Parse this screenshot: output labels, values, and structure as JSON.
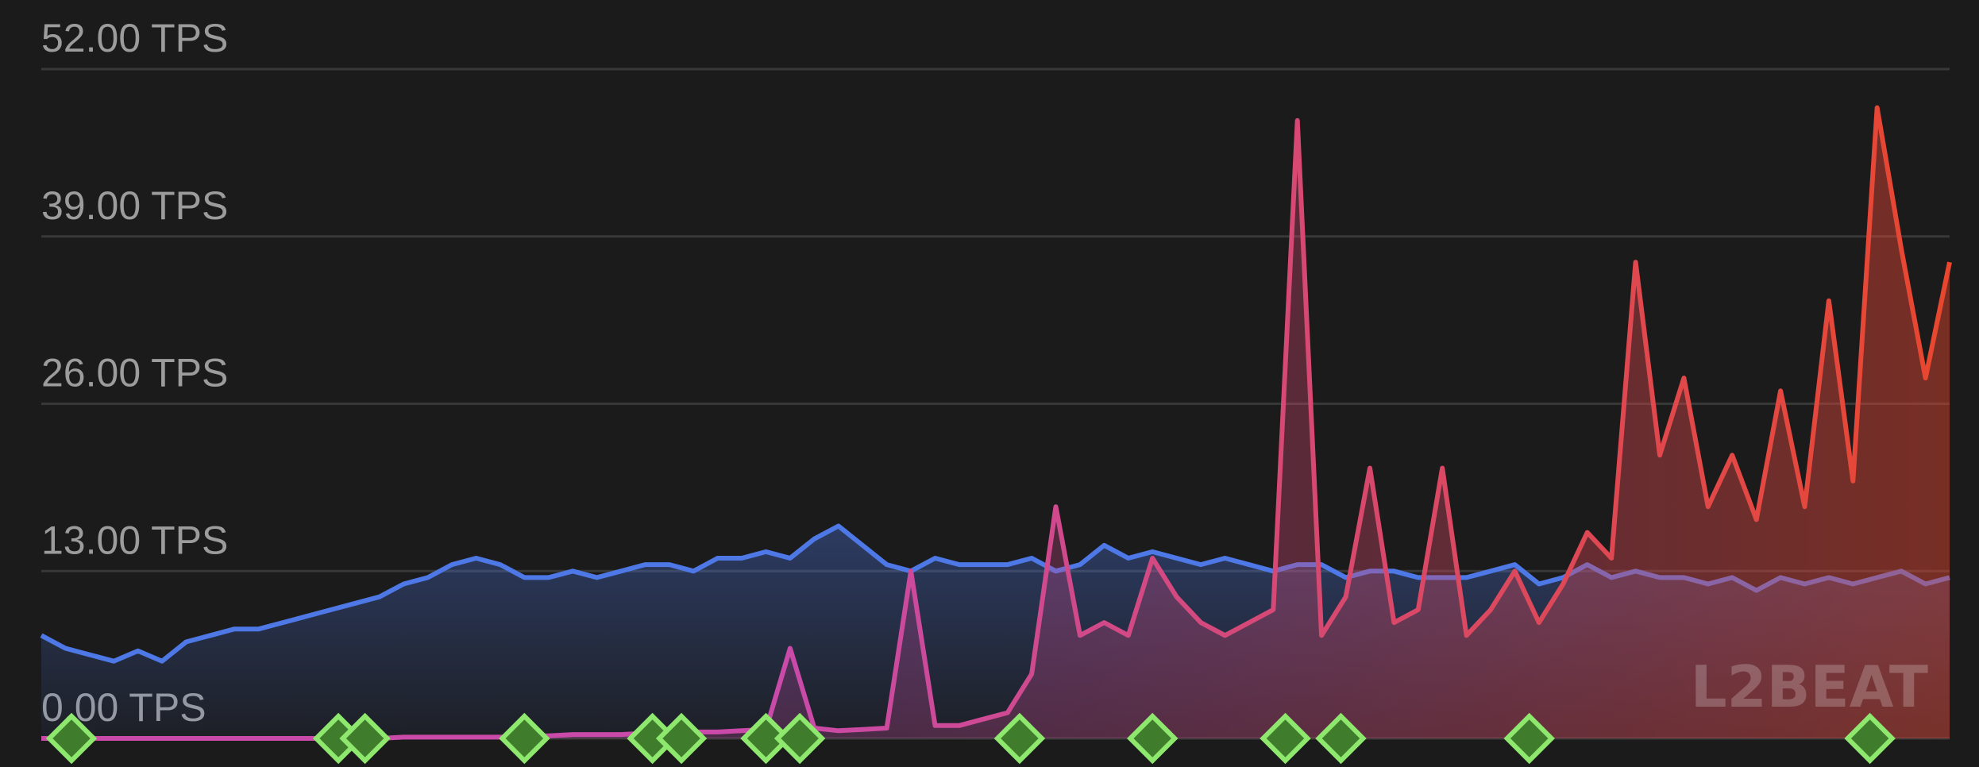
{
  "chart_data": {
    "type": "line",
    "ylim": [
      0,
      52
    ],
    "yticks": [
      {
        "value": 0,
        "label": "0.00 TPS"
      },
      {
        "value": 13,
        "label": "13.00 TPS"
      },
      {
        "value": 26,
        "label": "26.00 TPS"
      },
      {
        "value": 39,
        "label": "39.00 TPS"
      },
      {
        "value": 52,
        "label": "52.00 TPS"
      }
    ],
    "grid": true,
    "area": true,
    "series": [
      {
        "color": "#4d78e6",
        "values": [
          8,
          7,
          6.5,
          6,
          6.8,
          6,
          7.5,
          8,
          8.5,
          8.5,
          9,
          9.5,
          10,
          10.5,
          11,
          12,
          12.5,
          13.5,
          14,
          13.5,
          12.5,
          12.5,
          13,
          12.5,
          13,
          13.5,
          13.5,
          13,
          14,
          14,
          14.5,
          14,
          15.5,
          16.5,
          15,
          13.5,
          13,
          14,
          13.5,
          13.5,
          13.5,
          14,
          13,
          13.5,
          15,
          14,
          14.5,
          14,
          13.5,
          14,
          13.5,
          13,
          13.5,
          13.5,
          12.5,
          13,
          13,
          12.5,
          12.5,
          12.5,
          13,
          13.5,
          12,
          12.5,
          13.5,
          12.5,
          13,
          12.5,
          12.5,
          12,
          12.5,
          11.5,
          12.5,
          12,
          12.5,
          12,
          12.5,
          13,
          12,
          12.5
        ]
      },
      {
        "color": "#e8472e",
        "color_start": "#c94aa8",
        "values": [
          0,
          0,
          0,
          0,
          0,
          0,
          0,
          0,
          0,
          0,
          0,
          0,
          0,
          0,
          0,
          0.1,
          0.1,
          0.1,
          0.1,
          0.1,
          0.2,
          0.2,
          0.3,
          0.3,
          0.3,
          0.4,
          0.4,
          0.5,
          0.5,
          0.6,
          0.7,
          7,
          0.8,
          0.6,
          0.7,
          0.8,
          13,
          1,
          1,
          1.5,
          2,
          5,
          18,
          8,
          9,
          8,
          14,
          11,
          9,
          8,
          9,
          10,
          48,
          8,
          11,
          21,
          9,
          10,
          21,
          8,
          10,
          13,
          9,
          12,
          16,
          14,
          37,
          22,
          28,
          18,
          22,
          17,
          27,
          18,
          34,
          20,
          49,
          38,
          28,
          37
        ]
      }
    ],
    "event_markers": [
      1.25,
      12.3,
      13.4,
      20,
      25.3,
      26.5,
      30,
      31.4,
      40.5,
      46,
      51.5,
      53.8,
      61.6,
      75.7
    ],
    "event_marker_color": "#3f7d2c",
    "watermark": "L2BEAT"
  }
}
